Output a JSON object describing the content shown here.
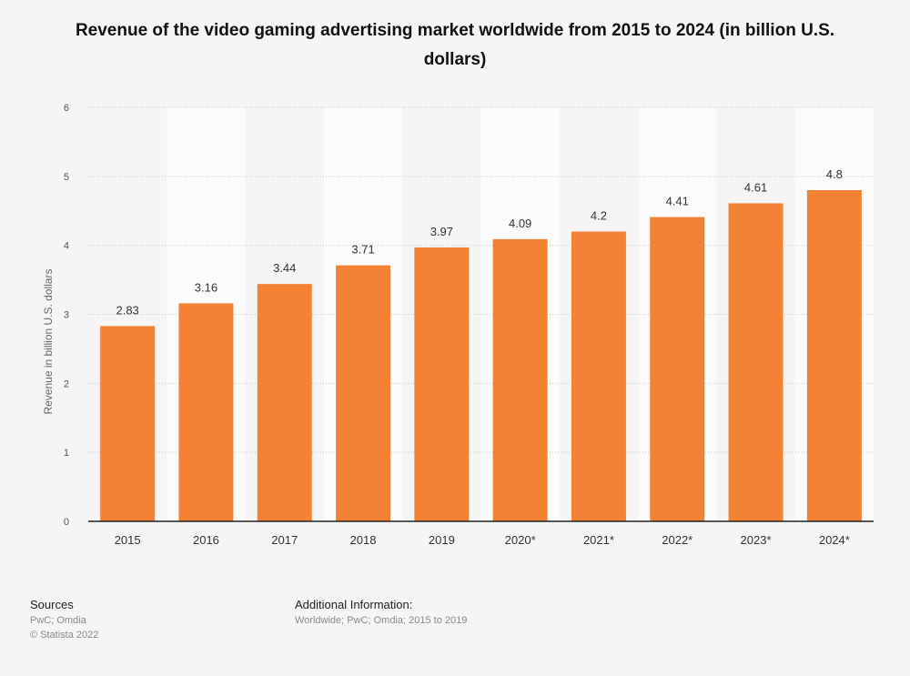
{
  "title": "Revenue of the video gaming advertising market worldwide from 2015 to 2024 (in billion U.S. dollars)",
  "chart_data": {
    "type": "bar",
    "categories": [
      "2015",
      "2016",
      "2017",
      "2018",
      "2019",
      "2020*",
      "2021*",
      "2022*",
      "2023*",
      "2024*"
    ],
    "values": [
      2.83,
      3.16,
      3.44,
      3.71,
      3.97,
      4.09,
      4.2,
      4.41,
      4.61,
      4.8
    ],
    "value_labels": [
      "2.83",
      "3.16",
      "3.44",
      "3.71",
      "3.97",
      "4.09",
      "4.2",
      "4.41",
      "4.61",
      "4.8"
    ],
    "title": "Revenue of the video gaming advertising market worldwide from 2015 to 2024 (in billion U.S. dollars)",
    "xlabel": "",
    "ylabel": "Revenue in billion U.S. dollars",
    "ylim": [
      0,
      6
    ],
    "yticks": [
      "0",
      "1",
      "2",
      "3",
      "4",
      "5",
      "6"
    ],
    "grid": true,
    "bar_color": "#f48235"
  },
  "footer": {
    "sources_heading": "Sources",
    "sources_line1": "PwC; Omdia",
    "sources_line2": "© Statista 2022",
    "info_heading": "Additional Information:",
    "info_line1": "Worldwide; PwC; Omdia; 2015 to 2019"
  }
}
